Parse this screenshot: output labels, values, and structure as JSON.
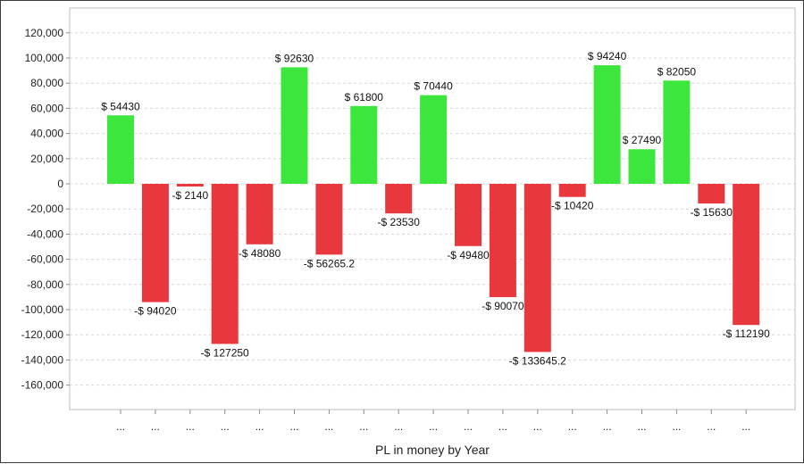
{
  "chart_data": {
    "type": "bar",
    "title": "",
    "xlabel": "PL in money by Year",
    "ylabel": "",
    "ylim": [
      -180000,
      140000
    ],
    "yticks": [
      120000,
      100000,
      80000,
      60000,
      40000,
      20000,
      0,
      -20000,
      -40000,
      -60000,
      -80000,
      -100000,
      -120000,
      -140000,
      -160000
    ],
    "ytick_labels": [
      "120,000",
      "100,000",
      "80,000",
      "60,000",
      "40,000",
      "20,000",
      "0",
      "-20,000",
      "-40,000",
      "-60,000",
      "-80,000",
      "-100,000",
      "-120,000",
      "-140,000",
      "-160,000"
    ],
    "grid": true,
    "colors": {
      "positive": "#3de63d",
      "negative": "#e8373d",
      "grid": "#d9d9d9",
      "axis": "#8c8c8c"
    },
    "categories": [
      "...",
      "...",
      "...",
      "...",
      "...",
      "...",
      "...",
      "...",
      "...",
      "...",
      "...",
      "...",
      "...",
      "...",
      "...",
      "...",
      "...",
      "...",
      "..."
    ],
    "values": [
      54430,
      -94020,
      -2140,
      -127250,
      -48080,
      92630,
      -56265.2,
      61800,
      -23530,
      70440,
      -49480,
      -90070,
      -133645.2,
      -10420,
      94240,
      27490,
      82050,
      -15630,
      -112190
    ],
    "data_labels": [
      "$ 54430",
      "-$ 94020",
      "-$ 2140",
      "-$ 127250",
      "-$ 48080",
      "$ 92630",
      "-$ 56265.2",
      "$ 61800",
      "-$ 23530",
      "$ 70440",
      "-$ 49480",
      "-$ 90070",
      "-$ 133645.2",
      "-$ 10420",
      "$ 94240",
      "$ 27490",
      "$ 82050",
      "-$ 15630",
      "-$ 112190"
    ]
  }
}
